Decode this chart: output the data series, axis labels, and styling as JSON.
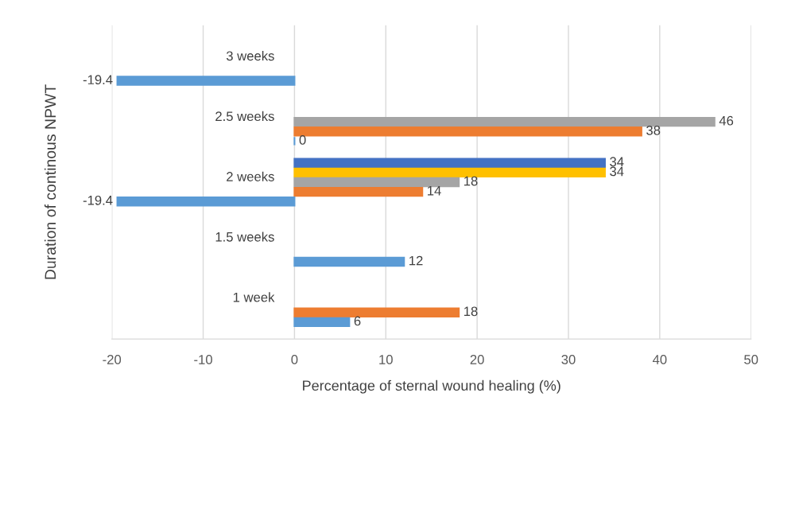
{
  "chart_data": {
    "type": "bar",
    "orientation": "horizontal",
    "xlabel": "Percentage of sternal wound healing (%)",
    "ylabel": "Duration of continous NPWT",
    "categories": [
      "3 weeks",
      "2.5 weeks",
      "2 weeks",
      "1.5 weeks",
      "1 week"
    ],
    "series": [
      {
        "color": "#4472c4",
        "values": [
          null,
          null,
          34,
          null,
          null
        ]
      },
      {
        "color": "#ffc000",
        "values": [
          null,
          null,
          34,
          null,
          null
        ]
      },
      {
        "color": "#a5a5a5",
        "values": [
          null,
          46,
          18,
          null,
          null
        ]
      },
      {
        "color": "#ed7d31",
        "values": [
          null,
          38,
          14,
          null,
          18
        ]
      },
      {
        "color": "#5b9bd5",
        "values": [
          -19.4,
          0,
          -19.4,
          12,
          6
        ]
      }
    ],
    "xlim": [
      -20,
      50
    ],
    "xticks": [
      -20,
      -10,
      0,
      10,
      20,
      30,
      40,
      50
    ],
    "grid": "x",
    "data_labels": true
  }
}
